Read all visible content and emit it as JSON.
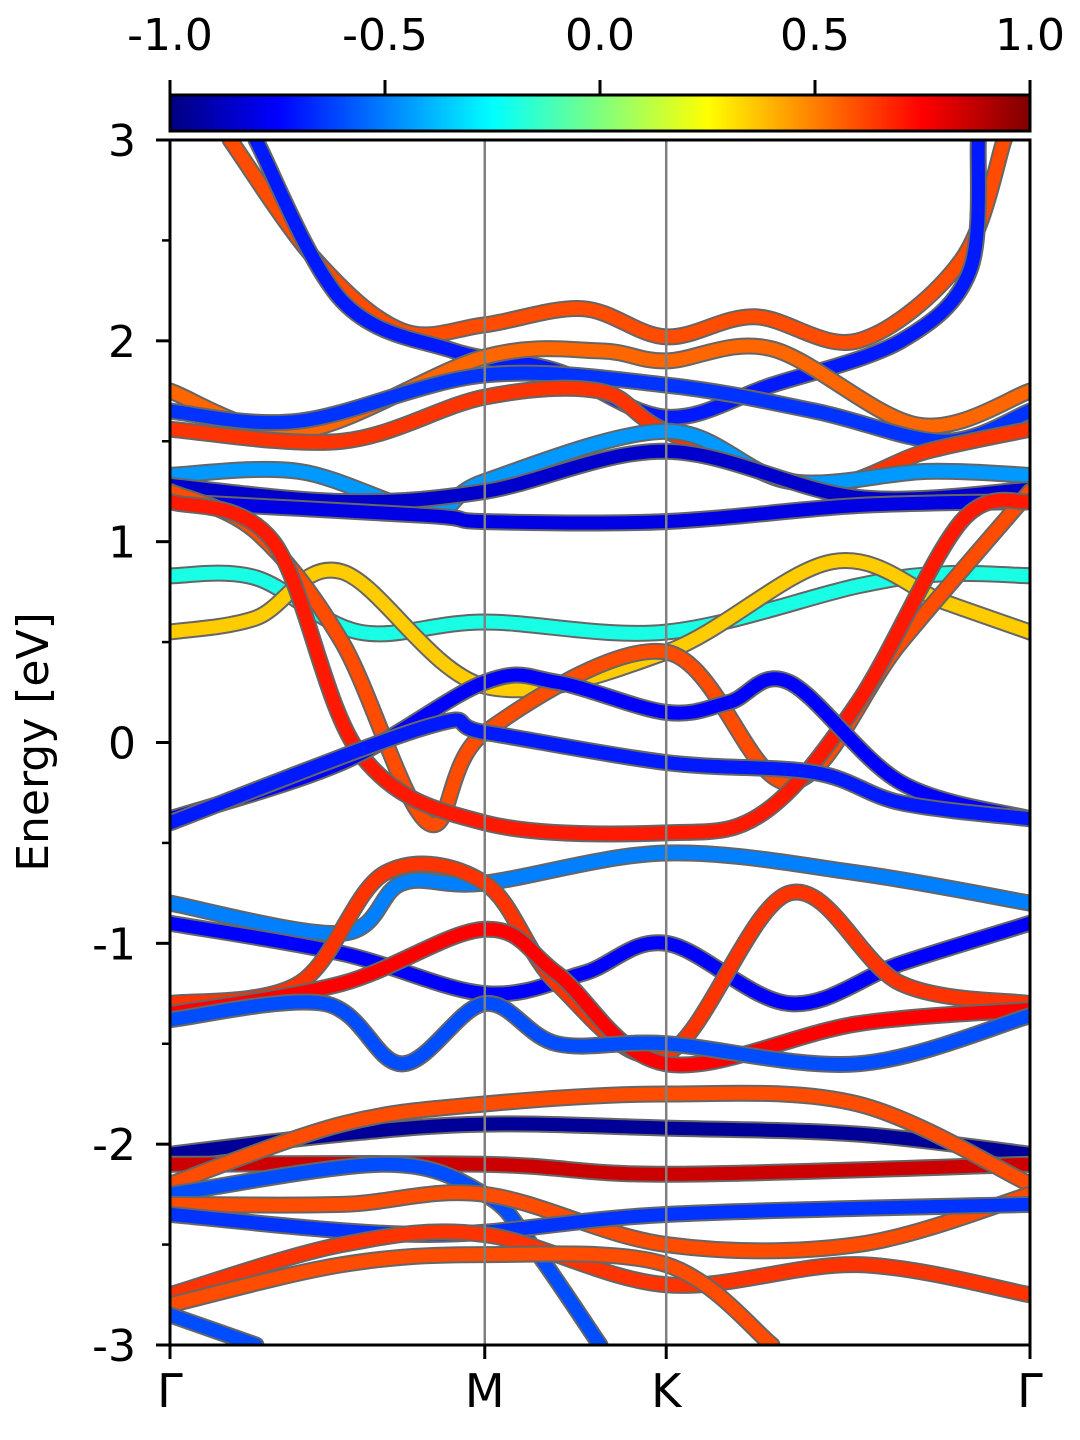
{
  "chart_data": {
    "type": "line",
    "title": "",
    "xlabel": "",
    "ylabel": "Energy [eV]",
    "ylim": [
      -3,
      3
    ],
    "yticks": [
      "3",
      "2",
      "1",
      "0",
      "-1",
      "-2",
      "-3"
    ],
    "ytick_values": [
      3,
      2,
      1,
      0,
      -1,
      -2,
      -3
    ],
    "ytick_minor_values": [
      2.5,
      1.5,
      0.5,
      -0.5,
      -1.5,
      -2.5
    ],
    "xlim": [
      0,
      1
    ],
    "kpath_labels": [
      "Γ",
      "M",
      "K",
      "Γ"
    ],
    "kpath_positions": [
      0.0,
      0.366,
      0.577,
      1.0
    ],
    "colorbar": {
      "range": [
        -1.0,
        1.0
      ],
      "ticks": [
        "-1.0",
        "-0.5",
        "0.0",
        "0.5",
        "1.0"
      ],
      "tick_values": [
        -1.0,
        -0.5,
        0.0,
        0.5,
        1.0
      ],
      "colormap": "jet",
      "stops": [
        "#00007f",
        "#0000ff",
        "#007fff",
        "#00ffff",
        "#7fff7f",
        "#ffff00",
        "#ff7f00",
        "#ff0000",
        "#7f0000"
      ]
    },
    "grid": false,
    "vertical_lines_at": [
      "M",
      "K"
    ],
    "series": [
      {
        "values": [
          [
            0.07,
            3.0
          ],
          [
            0.17,
            2.4
          ],
          [
            0.27,
            2.05
          ],
          [
            0.366,
            2.08
          ],
          [
            0.48,
            2.16
          ],
          [
            0.577,
            2.02
          ],
          [
            0.68,
            2.12
          ],
          [
            0.8,
            2.0
          ],
          [
            0.92,
            2.4
          ],
          [
            0.97,
            3.0
          ]
        ],
        "color_value": 0.6
      },
      {
        "values": [
          [
            0.1,
            3.0
          ],
          [
            0.2,
            2.2
          ],
          [
            0.33,
            1.95
          ],
          [
            0.45,
            1.85
          ],
          [
            0.577,
            1.62
          ],
          [
            0.7,
            1.78
          ],
          [
            0.85,
            2.0
          ],
          [
            0.93,
            2.35
          ],
          [
            0.94,
            3.0
          ]
        ],
        "color_value": -0.7
      },
      {
        "values": [
          [
            0.0,
            1.75
          ],
          [
            0.15,
            1.55
          ],
          [
            0.366,
            1.92
          ],
          [
            0.5,
            1.95
          ],
          [
            0.577,
            1.9
          ],
          [
            0.7,
            1.96
          ],
          [
            0.87,
            1.58
          ],
          [
            1.0,
            1.75
          ]
        ],
        "color_value": 0.55
      },
      {
        "values": [
          [
            0.0,
            1.65
          ],
          [
            0.15,
            1.6
          ],
          [
            0.366,
            1.83
          ],
          [
            0.577,
            1.78
          ],
          [
            0.75,
            1.65
          ],
          [
            0.9,
            1.5
          ],
          [
            1.0,
            1.65
          ]
        ],
        "color_value": -0.65
      },
      {
        "values": [
          [
            0.0,
            1.56
          ],
          [
            0.2,
            1.5
          ],
          [
            0.366,
            1.72
          ],
          [
            0.5,
            1.75
          ],
          [
            0.577,
            1.55
          ],
          [
            0.75,
            1.28
          ],
          [
            0.88,
            1.45
          ],
          [
            1.0,
            1.56
          ]
        ],
        "color_value": 0.65
      },
      {
        "values": [
          [
            0.0,
            1.33
          ],
          [
            0.15,
            1.35
          ],
          [
            0.3,
            1.15
          ],
          [
            0.366,
            1.3
          ],
          [
            0.577,
            1.55
          ],
          [
            0.72,
            1.3
          ],
          [
            0.88,
            1.35
          ],
          [
            1.0,
            1.33
          ]
        ],
        "color_value": -0.45
      },
      {
        "values": [
          [
            0.0,
            1.28
          ],
          [
            0.2,
            1.2
          ],
          [
            0.366,
            1.25
          ],
          [
            0.577,
            1.45
          ],
          [
            0.8,
            1.22
          ],
          [
            1.0,
            1.26
          ]
        ],
        "color_value": -0.85
      },
      {
        "values": [
          [
            0.0,
            1.2
          ],
          [
            0.3,
            1.13
          ],
          [
            0.366,
            1.1
          ],
          [
            0.577,
            1.1
          ],
          [
            0.8,
            1.18
          ],
          [
            1.0,
            1.2
          ]
        ],
        "color_value": -0.8
      },
      {
        "values": [
          [
            0.0,
            0.83
          ],
          [
            0.1,
            0.82
          ],
          [
            0.22,
            0.55
          ],
          [
            0.366,
            0.6
          ],
          [
            0.577,
            0.55
          ],
          [
            0.8,
            0.78
          ],
          [
            0.9,
            0.84
          ],
          [
            1.0,
            0.83
          ]
        ],
        "color_value": -0.2
      },
      {
        "values": [
          [
            0.0,
            0.55
          ],
          [
            0.1,
            0.62
          ],
          [
            0.2,
            0.85
          ],
          [
            0.366,
            0.28
          ],
          [
            0.577,
            0.45
          ],
          [
            0.77,
            0.9
          ],
          [
            0.9,
            0.7
          ],
          [
            1.0,
            0.55
          ]
        ],
        "color_value": 0.35
      },
      {
        "values": [
          [
            0.0,
            1.25
          ],
          [
            0.1,
            1.05
          ],
          [
            0.2,
            0.5
          ],
          [
            0.3,
            -0.4
          ],
          [
            0.366,
            0.05
          ],
          [
            0.577,
            0.45
          ],
          [
            0.72,
            -0.2
          ],
          [
            0.85,
            0.5
          ],
          [
            1.0,
            1.25
          ]
        ],
        "color_value": 0.6
      },
      {
        "values": [
          [
            0.0,
            1.2
          ],
          [
            0.12,
            1.0
          ],
          [
            0.22,
            -0.05
          ],
          [
            0.366,
            -0.4
          ],
          [
            0.577,
            -0.45
          ],
          [
            0.69,
            -0.35
          ],
          [
            0.8,
            0.2
          ],
          [
            0.92,
            1.1
          ],
          [
            1.0,
            1.2
          ]
        ],
        "color_value": 0.7
      },
      {
        "values": [
          [
            0.0,
            -0.38
          ],
          [
            0.2,
            -0.1
          ],
          [
            0.366,
            0.3
          ],
          [
            0.45,
            0.3
          ],
          [
            0.577,
            0.15
          ],
          [
            0.65,
            0.2
          ],
          [
            0.72,
            0.3
          ],
          [
            0.85,
            -0.2
          ],
          [
            1.0,
            -0.38
          ]
        ],
        "color_value": -0.75
      },
      {
        "values": [
          [
            0.0,
            -0.4
          ],
          [
            0.3,
            0.08
          ],
          [
            0.366,
            0.05
          ],
          [
            0.577,
            -0.1
          ],
          [
            0.75,
            -0.15
          ],
          [
            0.85,
            -0.3
          ],
          [
            1.0,
            -0.38
          ]
        ],
        "color_value": -0.7
      },
      {
        "values": [
          [
            0.0,
            -0.8
          ],
          [
            0.2,
            -0.95
          ],
          [
            0.27,
            -0.7
          ],
          [
            0.366,
            -0.7
          ],
          [
            0.577,
            -0.55
          ],
          [
            0.8,
            -0.65
          ],
          [
            1.0,
            -0.8
          ]
        ],
        "color_value": -0.5
      },
      {
        "values": [
          [
            0.0,
            -0.9
          ],
          [
            0.2,
            -1.05
          ],
          [
            0.366,
            -1.25
          ],
          [
            0.48,
            -1.15
          ],
          [
            0.577,
            -1.0
          ],
          [
            0.72,
            -1.3
          ],
          [
            0.85,
            -1.1
          ],
          [
            1.0,
            -0.9
          ]
        ],
        "color_value": -0.75
      },
      {
        "values": [
          [
            0.0,
            -1.3
          ],
          [
            0.15,
            -1.2
          ],
          [
            0.25,
            -0.65
          ],
          [
            0.366,
            -0.7
          ],
          [
            0.45,
            -1.2
          ],
          [
            0.577,
            -1.55
          ],
          [
            0.72,
            -0.75
          ],
          [
            0.85,
            -1.2
          ],
          [
            1.0,
            -1.3
          ]
        ],
        "color_value": 0.65
      },
      {
        "values": [
          [
            0.0,
            -1.35
          ],
          [
            0.2,
            -1.2
          ],
          [
            0.366,
            -0.93
          ],
          [
            0.45,
            -1.15
          ],
          [
            0.577,
            -1.6
          ],
          [
            0.8,
            -1.4
          ],
          [
            1.0,
            -1.33
          ]
        ],
        "color_value": 0.75
      },
      {
        "values": [
          [
            0.0,
            -1.38
          ],
          [
            0.18,
            -1.3
          ],
          [
            0.27,
            -1.6
          ],
          [
            0.366,
            -1.3
          ],
          [
            0.45,
            -1.5
          ],
          [
            0.577,
            -1.5
          ],
          [
            0.8,
            -1.6
          ],
          [
            1.0,
            -1.36
          ]
        ],
        "color_value": -0.6
      },
      {
        "values": [
          [
            0.0,
            -2.05
          ],
          [
            0.2,
            -1.95
          ],
          [
            0.366,
            -1.9
          ],
          [
            0.577,
            -1.92
          ],
          [
            0.8,
            -1.95
          ],
          [
            1.0,
            -2.05
          ]
        ],
        "color_value": -0.95
      },
      {
        "values": [
          [
            0.0,
            -2.1
          ],
          [
            0.366,
            -2.1
          ],
          [
            0.577,
            -2.15
          ],
          [
            1.0,
            -2.1
          ]
        ],
        "color_value": 0.85
      },
      {
        "values": [
          [
            0.0,
            -2.2
          ],
          [
            0.2,
            -1.9
          ],
          [
            0.366,
            -1.8
          ],
          [
            0.577,
            -1.75
          ],
          [
            0.8,
            -1.8
          ],
          [
            1.0,
            -2.2
          ]
        ],
        "color_value": 0.6
      },
      {
        "values": [
          [
            0.0,
            -2.25
          ],
          [
            0.25,
            -2.1
          ],
          [
            0.366,
            -2.25
          ],
          [
            0.42,
            -2.5
          ],
          [
            0.5,
            -3.0
          ]
        ],
        "color_value": -0.6
      },
      {
        "values": [
          [
            0.0,
            -2.3
          ],
          [
            0.2,
            -2.3
          ],
          [
            0.366,
            -2.25
          ],
          [
            0.577,
            -2.5
          ],
          [
            0.8,
            -2.5
          ],
          [
            1.0,
            -2.25
          ]
        ],
        "color_value": 0.6
      },
      {
        "values": [
          [
            0.0,
            -2.35
          ],
          [
            0.3,
            -2.45
          ],
          [
            0.577,
            -2.35
          ],
          [
            1.0,
            -2.3
          ]
        ],
        "color_value": -0.65
      },
      {
        "values": [
          [
            0.0,
            -2.75
          ],
          [
            0.2,
            -2.5
          ],
          [
            0.366,
            -2.45
          ],
          [
            0.577,
            -2.7
          ],
          [
            0.8,
            -2.6
          ],
          [
            1.0,
            -2.75
          ]
        ],
        "color_value": 0.65
      },
      {
        "values": [
          [
            0.0,
            -2.8
          ],
          [
            0.2,
            -2.6
          ],
          [
            0.366,
            -2.55
          ],
          [
            0.577,
            -2.6
          ],
          [
            0.7,
            -3.0
          ]
        ],
        "color_value": 0.6
      },
      {
        "values": [
          [
            0.0,
            -2.85
          ],
          [
            0.1,
            -3.0
          ]
        ],
        "color_value": -0.6
      }
    ]
  }
}
